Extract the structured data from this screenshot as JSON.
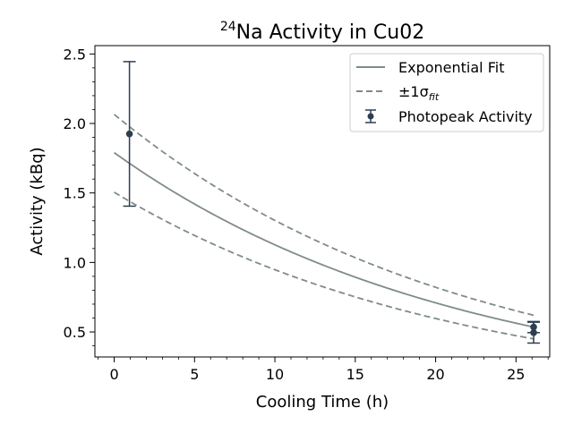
{
  "chart_data": {
    "type": "line",
    "title_super": "24",
    "title_main": "Na Activity in Cu02",
    "xlabel": "Cooling Time (h)",
    "ylabel": "Activity (kBq)",
    "xlim": [
      -1.2,
      27.1
    ],
    "ylim": [
      0.32,
      2.56
    ],
    "x_ticks": [
      0,
      5,
      10,
      15,
      20,
      25
    ],
    "y_ticks": [
      0.5,
      1.0,
      1.5,
      2.0,
      2.5
    ],
    "x_tick_labels": [
      "0",
      "5",
      "10",
      "15",
      "20",
      "25"
    ],
    "y_tick_labels": [
      "0.5",
      "1.0",
      "1.5",
      "2.0",
      "2.5"
    ],
    "grid": false,
    "legend_position": "top-right",
    "legend": {
      "fit_label": "Exponential Fit",
      "band_prefix": "±1σ",
      "band_subscript": "fit",
      "points_label": "Photopeak Activity"
    },
    "colors": {
      "fit": "#7f8c87",
      "band": "#7f8c87",
      "points": "#2c3e50"
    },
    "series": [
      {
        "kind": "curve",
        "x_range": [
          0,
          26.1
        ],
        "y_start": 1.79,
        "y_end": 0.535
      },
      {
        "kind": "band-upper",
        "x_range": [
          0,
          26.1
        ],
        "y_start": 2.065,
        "y_end": 0.62
      },
      {
        "kind": "band-lower",
        "x_range": [
          0,
          26.1
        ],
        "y_start": 1.505,
        "y_end": 0.45
      },
      {
        "kind": "points-with-errors",
        "x": [
          0.95,
          26.1,
          26.1
        ],
        "y": [
          1.925,
          0.535,
          0.495
        ],
        "yerr": [
          0.52,
          0.04,
          0.075
        ]
      }
    ]
  }
}
